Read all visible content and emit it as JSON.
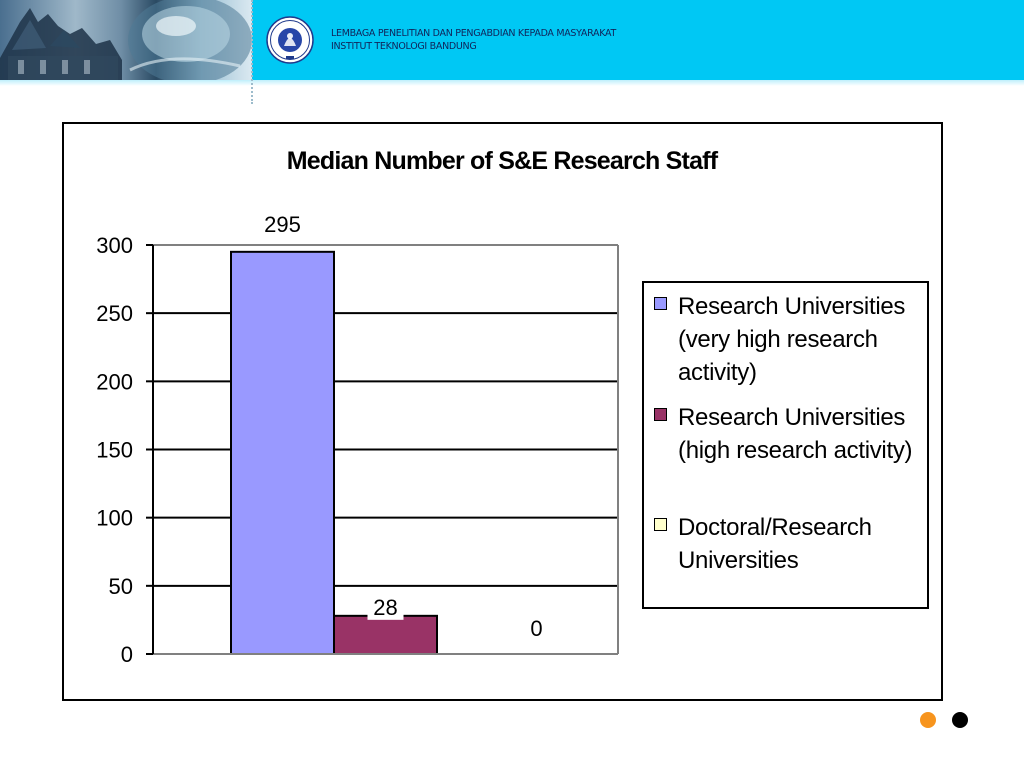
{
  "header": {
    "institution_line1": "LEMBAGA PENELITIAN DAN  PENGABDIAN KEPADA MASYARAKAT",
    "institution_line2": "INSTITUT TEKNOLOGI BANDUNG",
    "logo_icon": "itb-ganesha-logo-icon",
    "banner_color": "#00c8f4"
  },
  "chart_data": {
    "type": "bar",
    "title": "Median Number of S&E Research Staff",
    "xlabel": "",
    "ylabel": "",
    "ylim": [
      0,
      300
    ],
    "yticks": [
      0,
      50,
      100,
      150,
      200,
      250,
      300
    ],
    "grid": true,
    "legend_position": "right",
    "series": [
      {
        "name": "Research Universities (very high research activity)",
        "value": 295,
        "color": "#9999ff"
      },
      {
        "name": "Research Universities (high research activity)",
        "value": 28,
        "color": "#993366"
      },
      {
        "name": "Doctoral/Research Universities",
        "value": 0,
        "color": "#ffffcc"
      }
    ]
  },
  "nav": {
    "dot_colors": [
      "#f7941d",
      "#000000"
    ]
  }
}
